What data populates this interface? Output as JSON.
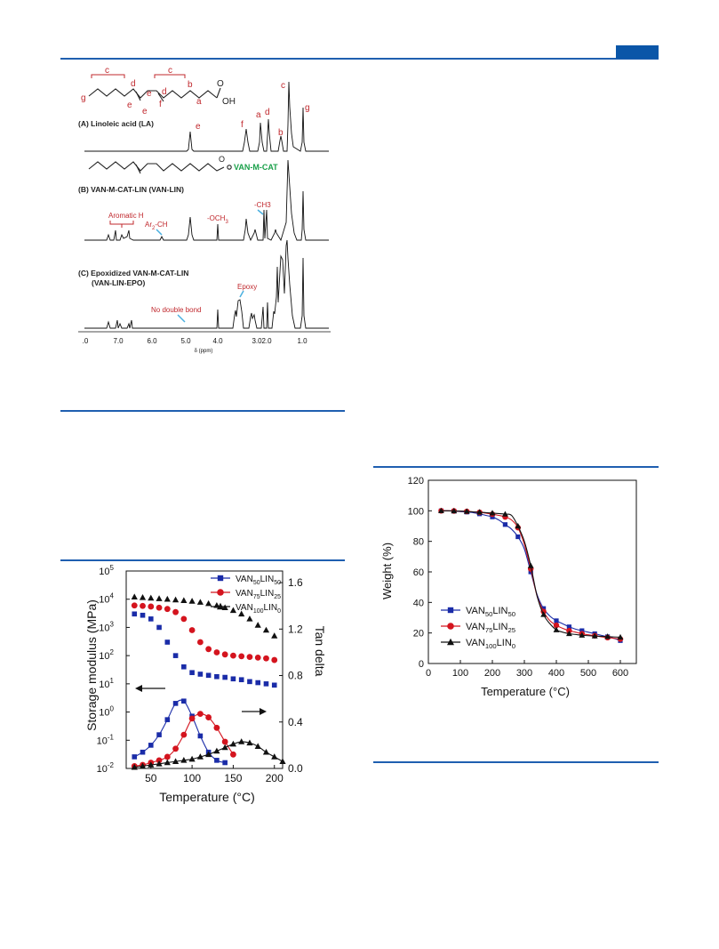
{
  "nmr": {
    "panels": [
      {
        "label": "(A) Linoleic acid (LA)"
      },
      {
        "label": "(B) VAN-M-CAT-LIN (VAN-LIN)"
      },
      {
        "label_line1": "(C) Epoxidized VAN-M-CAT-LIN",
        "label_line2": "(VAN-LIN-EPO)"
      }
    ],
    "structure_letters": [
      "g",
      "c",
      "d",
      "e",
      "e",
      "f",
      "e",
      "d",
      "c",
      "b",
      "a"
    ],
    "oh_label": "OH",
    "o_label": "O",
    "peak_letters_a": [
      "e",
      "f",
      "a",
      "d",
      "c",
      "b",
      "g"
    ],
    "van_m_cat": "VAN-M-CAT",
    "annotations_b": [
      "Aromatic H",
      "Ar",
      "2",
      "-CH",
      "-OCH",
      "3",
      "-CH3"
    ],
    "annotations_c": [
      "No double bond",
      "Epoxy"
    ],
    "x_ticks": [
      ".0",
      "7.0",
      "6.0",
      "5.0",
      "4.0",
      "3.0",
      "2.0",
      "1.0"
    ],
    "x_label": "δ (ppm)",
    "colors": {
      "annotation": "#c0282d",
      "arrow": "#4ab0e0",
      "green": "#1aa04a"
    }
  },
  "chart_data": [
    {
      "type": "scatter",
      "xlabel": "Temperature (°C)",
      "ylabel": "Storage modulus (MPa)",
      "y2label": "Tan delta",
      "xlim": [
        20,
        210
      ],
      "ylim_log": [
        -2,
        5
      ],
      "y2lim": [
        0.0,
        1.7
      ],
      "x_ticks": [
        50,
        100,
        150,
        200
      ],
      "y_ticks": [
        {
          "e": -2
        },
        {
          "e": -1
        },
        {
          "e": 0
        },
        {
          "e": 1
        },
        {
          "e": 2
        },
        {
          "e": 3
        },
        {
          "e": 4
        },
        {
          "e": 5
        }
      ],
      "y2_ticks": [
        "0.0",
        "0.4",
        "0.8",
        "1.2",
        "1.6"
      ],
      "legend": [
        {
          "base": "VAN",
          "s1": "50",
          "mid": "LIN",
          "s2": "50",
          "color": "#1a2ca8",
          "marker": "square"
        },
        {
          "base": "VAN",
          "s1": "75",
          "mid": "LIN",
          "s2": "25",
          "color": "#d4141e",
          "marker": "circle"
        },
        {
          "base": "VAN",
          "s1": "100",
          "mid": "LIN",
          "s2": "0",
          "color": "#111111",
          "marker": "triangle"
        }
      ],
      "modulus_series": [
        {
          "name": "VAN50LIN50",
          "color": "#1a2ca8",
          "marker": "square",
          "x": [
            30,
            40,
            50,
            60,
            70,
            80,
            90,
            100,
            110,
            120,
            130,
            140,
            150,
            160,
            170,
            180,
            190,
            200
          ],
          "y": [
            3000,
            2700,
            2000,
            1000,
            300,
            100,
            40,
            25,
            22,
            20,
            18,
            17,
            15,
            14,
            12,
            11,
            10,
            9
          ]
        },
        {
          "name": "VAN75LIN25",
          "color": "#d4141e",
          "marker": "circle",
          "x": [
            30,
            40,
            50,
            60,
            70,
            80,
            90,
            100,
            110,
            120,
            130,
            140,
            150,
            160,
            170,
            180,
            190,
            200
          ],
          "y": [
            6000,
            5800,
            5500,
            5000,
            4500,
            3500,
            2000,
            800,
            300,
            170,
            130,
            110,
            100,
            95,
            90,
            85,
            80,
            70
          ]
        },
        {
          "name": "VAN100LIN0",
          "color": "#111111",
          "marker": "triangle",
          "x": [
            30,
            40,
            50,
            60,
            70,
            80,
            90,
            100,
            110,
            120,
            130,
            140,
            150,
            160,
            170,
            180,
            190,
            200
          ],
          "y": [
            12000,
            11500,
            11000,
            10500,
            10000,
            9500,
            9000,
            8500,
            7800,
            7000,
            6000,
            5000,
            4000,
            3000,
            2000,
            1200,
            800,
            500
          ]
        }
      ],
      "tan_series": [
        {
          "name": "VAN50LIN50",
          "color": "#1a2ca8",
          "marker": "square",
          "x": [
            30,
            40,
            50,
            60,
            70,
            80,
            90,
            100,
            110,
            120,
            130,
            140
          ],
          "y": [
            0.1,
            0.14,
            0.2,
            0.29,
            0.42,
            0.56,
            0.58,
            0.45,
            0.28,
            0.14,
            0.07,
            0.05
          ]
        },
        {
          "name": "VAN75LIN25",
          "color": "#d4141e",
          "marker": "circle",
          "x": [
            30,
            40,
            50,
            60,
            70,
            80,
            90,
            100,
            110,
            120,
            130,
            140,
            150
          ],
          "y": [
            0.02,
            0.03,
            0.05,
            0.07,
            0.1,
            0.17,
            0.29,
            0.43,
            0.47,
            0.44,
            0.35,
            0.23,
            0.12
          ]
        },
        {
          "name": "VAN100LIN0",
          "color": "#111111",
          "marker": "triangle",
          "x": [
            30,
            40,
            50,
            60,
            70,
            80,
            90,
            100,
            110,
            120,
            130,
            140,
            150,
            160,
            170,
            180,
            190,
            200,
            210
          ],
          "y": [
            0.01,
            0.02,
            0.03,
            0.04,
            0.05,
            0.06,
            0.07,
            0.08,
            0.1,
            0.12,
            0.15,
            0.18,
            0.21,
            0.23,
            0.22,
            0.19,
            0.14,
            0.1,
            0.06
          ]
        }
      ]
    },
    {
      "type": "line",
      "xlabel": "Temperature (°C)",
      "ylabel": "Weight (%)",
      "xlim": [
        0,
        650
      ],
      "ylim": [
        0,
        120
      ],
      "x_ticks": [
        0,
        100,
        200,
        300,
        400,
        500,
        600
      ],
      "y_ticks": [
        0,
        20,
        40,
        60,
        80,
        100,
        120
      ],
      "legend": [
        {
          "base": "VAN",
          "s1": "50",
          "mid": "LIN",
          "s2": "50",
          "color": "#1a2ca8",
          "marker": "square"
        },
        {
          "base": "VAN",
          "s1": "75",
          "mid": "LIN",
          "s2": "25",
          "color": "#d4141e",
          "marker": "circle"
        },
        {
          "base": "VAN",
          "s1": "100",
          "mid": "LIN",
          "s2": "0",
          "color": "#111111",
          "marker": "triangle"
        }
      ],
      "series": [
        {
          "name": "VAN50LIN50",
          "color": "#1a2ca8",
          "marker": "square",
          "x": [
            40,
            60,
            80,
            100,
            120,
            140,
            160,
            180,
            200,
            220,
            240,
            260,
            280,
            300,
            320,
            340,
            360,
            380,
            400,
            420,
            440,
            460,
            480,
            500,
            520,
            540,
            560,
            580,
            600
          ],
          "y": [
            100,
            100,
            99.8,
            99.5,
            99.2,
            98.8,
            98,
            97,
            96,
            94,
            91,
            88,
            83,
            75,
            60,
            45,
            36,
            31,
            28,
            26,
            24,
            22.5,
            21.5,
            20.5,
            19.5,
            18.5,
            17.5,
            16.5,
            15
          ]
        },
        {
          "name": "VAN75LIN25",
          "color": "#d4141e",
          "marker": "circle",
          "x": [
            40,
            60,
            80,
            100,
            120,
            140,
            160,
            180,
            200,
            220,
            240,
            260,
            280,
            300,
            320,
            340,
            360,
            380,
            400,
            420,
            440,
            460,
            480,
            500,
            520,
            540,
            560,
            580,
            600
          ],
          "y": [
            100,
            100,
            99.9,
            99.8,
            99.6,
            99.3,
            99,
            98.5,
            97.8,
            97,
            96,
            94,
            89,
            78,
            62,
            44,
            34,
            28,
            25,
            23,
            21.5,
            20.5,
            19.5,
            18.8,
            18.2,
            17.5,
            17,
            16.5,
            16
          ]
        },
        {
          "name": "VAN100LIN0",
          "color": "#111111",
          "marker": "triangle",
          "x": [
            40,
            60,
            80,
            100,
            120,
            140,
            160,
            180,
            200,
            220,
            240,
            260,
            280,
            300,
            320,
            340,
            360,
            380,
            400,
            420,
            440,
            460,
            480,
            500,
            520,
            540,
            560,
            580,
            600
          ],
          "y": [
            100,
            100,
            99.9,
            99.8,
            99.6,
            99.3,
            99.1,
            98.8,
            98.5,
            98.2,
            97.8,
            97,
            90,
            80,
            64,
            44,
            32,
            26,
            22,
            20.5,
            19.5,
            19,
            18.5,
            18.2,
            18,
            17.8,
            17.6,
            17.4,
            17.2
          ]
        }
      ]
    }
  ]
}
